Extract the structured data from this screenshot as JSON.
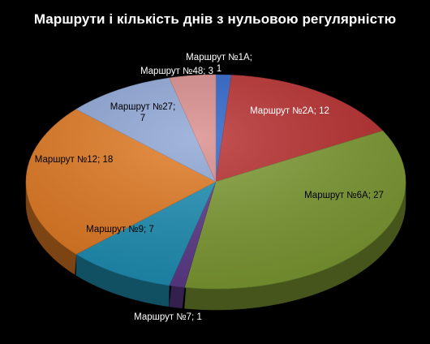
{
  "chart_data": {
    "type": "pie",
    "title": "Маршрути і кількість днів з нульовою регулярністю",
    "categories": [
      "Маршрут №1А",
      "Маршрут №2А",
      "Маршрут №6А",
      "Маршрут №7",
      "Маршрут №9",
      "Маршрут №12",
      "Маршрут №27",
      "Маршрут №48"
    ],
    "values": [
      1,
      12,
      27,
      1,
      7,
      18,
      7,
      3
    ],
    "data_labels": [
      [
        "Маршрут №1А;",
        "1"
      ],
      [
        "Маршрут №2А; 12"
      ],
      [
        "Маршрут №6А; 27"
      ],
      [
        "Маршрут №7; 1"
      ],
      [
        "Маршрут №9; 7"
      ],
      [
        "Маршрут №12; 18"
      ],
      [
        "Маршрут №27;",
        "7"
      ],
      [
        "Маршрут №48; 3"
      ]
    ],
    "colors": [
      "#2a62c8",
      "#b82e2e",
      "#7d9a33",
      "#5d3a8a",
      "#1f8fb4",
      "#e17a23",
      "#8ea6d6",
      "#d98c8c"
    ],
    "label_colors": [
      "#ffffff",
      "#ffffff",
      "#000000",
      "#ffffff",
      "#000000",
      "#000000",
      "#000000",
      "#ffffff"
    ],
    "style": "3d-pie",
    "legend": "none"
  }
}
